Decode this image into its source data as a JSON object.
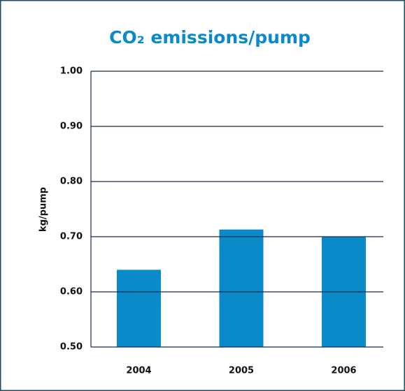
{
  "chart_data": {
    "type": "bar",
    "title": "CO₂ emissions/pump",
    "y_label": "kg/pump",
    "categories": [
      "2004",
      "2005",
      "2006"
    ],
    "values": [
      0.64,
      0.713,
      0.7
    ],
    "color": "#0a8ac8",
    "ylim": [
      0.5,
      1.0
    ],
    "yticks": [
      {
        "value": 0.5,
        "label": "0.50"
      },
      {
        "value": 0.6,
        "label": "0.60"
      },
      {
        "value": 0.7,
        "label": "0.70"
      },
      {
        "value": 0.8,
        "label": "0.80"
      },
      {
        "value": 0.9,
        "label": "0.90"
      },
      {
        "value": 1.0,
        "label": "1.00"
      }
    ],
    "grid": true
  }
}
